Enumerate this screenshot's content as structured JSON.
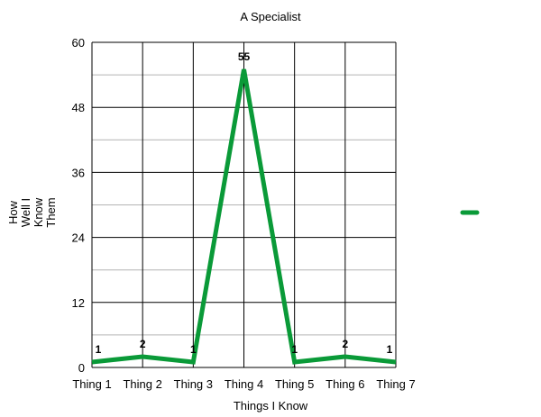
{
  "chart_data": {
    "type": "line",
    "title": "A Specialist",
    "xlabel": "Things I Know",
    "ylabel": [
      "How",
      "Well I",
      "Know",
      "Them"
    ],
    "categories": [
      "Thing 1",
      "Thing 2",
      "Thing 3",
      "Thing 4",
      "Thing 5",
      "Thing 6",
      "Thing 7"
    ],
    "series": [
      {
        "values": [
          1,
          2,
          1,
          55,
          1,
          2,
          1
        ],
        "color": "#0a9a38"
      }
    ],
    "ylim": [
      0,
      60
    ],
    "yticks": [
      0,
      12,
      24,
      36,
      48,
      60
    ],
    "grid": true,
    "minor_gridlines": true,
    "data_labels": true,
    "legend": "right"
  }
}
